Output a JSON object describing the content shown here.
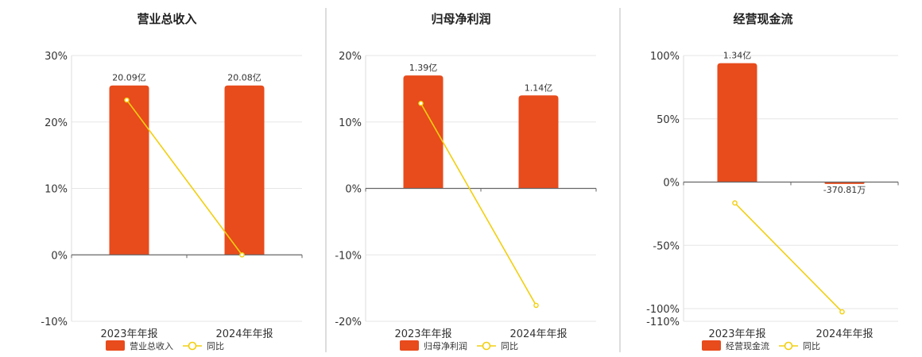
{
  "colors": {
    "bar": "#E84B1C",
    "line": "#F2CF10",
    "grid": "#E6E6E6",
    "axis": "#666666",
    "divider": "#BBBBBB"
  },
  "chart_data": [
    {
      "type": "bar",
      "title": "营业总收入",
      "categories": [
        "2023年年报",
        "2024年年报"
      ],
      "series": [
        {
          "name": "营业总收入",
          "type": "bar",
          "values": [
            25.5,
            25.5
          ],
          "value_labels": [
            "20.09亿",
            "20.08亿"
          ]
        },
        {
          "name": "同比",
          "type": "line",
          "values": [
            23.3,
            0
          ]
        }
      ],
      "ylim": [
        -10,
        30
      ],
      "yticks": [
        -10,
        0,
        10,
        20,
        30
      ],
      "ytick_labels": [
        "-10%",
        "0%",
        "10%",
        "20%",
        "30%"
      ],
      "legend": [
        "营业总收入",
        "同比"
      ],
      "legend_position": "bottom"
    },
    {
      "type": "bar",
      "title": "归母净利润",
      "categories": [
        "2023年年报",
        "2024年年报"
      ],
      "series": [
        {
          "name": "归母净利润",
          "type": "bar",
          "values": [
            17,
            14
          ],
          "value_labels": [
            "1.39亿",
            "1.14亿"
          ]
        },
        {
          "name": "同比",
          "type": "line",
          "values": [
            12.8,
            -17.6
          ]
        }
      ],
      "ylim": [
        -20,
        20
      ],
      "yticks": [
        -20,
        -10,
        0,
        10,
        20
      ],
      "ytick_labels": [
        "-20%",
        "-10%",
        "0%",
        "10%",
        "20%"
      ],
      "legend": [
        "归母净利润",
        "同比"
      ],
      "legend_position": "bottom"
    },
    {
      "type": "bar",
      "title": "经营现金流",
      "categories": [
        "2023年年报",
        "2024年年报"
      ],
      "series": [
        {
          "name": "经营现金流",
          "type": "bar",
          "values": [
            94,
            -1.5
          ],
          "value_labels": [
            "1.34亿",
            "-370.81万"
          ]
        },
        {
          "name": "同比",
          "type": "line",
          "values": [
            -16.5,
            -102.5
          ]
        }
      ],
      "ylim": [
        -110,
        100
      ],
      "yticks": [
        -110,
        -100,
        -50,
        0,
        50,
        100
      ],
      "ytick_labels": [
        "-110%",
        "-100%",
        "-50%",
        "0%",
        "50%",
        "100%"
      ],
      "legend": [
        "经营现金流",
        "同比"
      ],
      "legend_position": "bottom"
    }
  ]
}
